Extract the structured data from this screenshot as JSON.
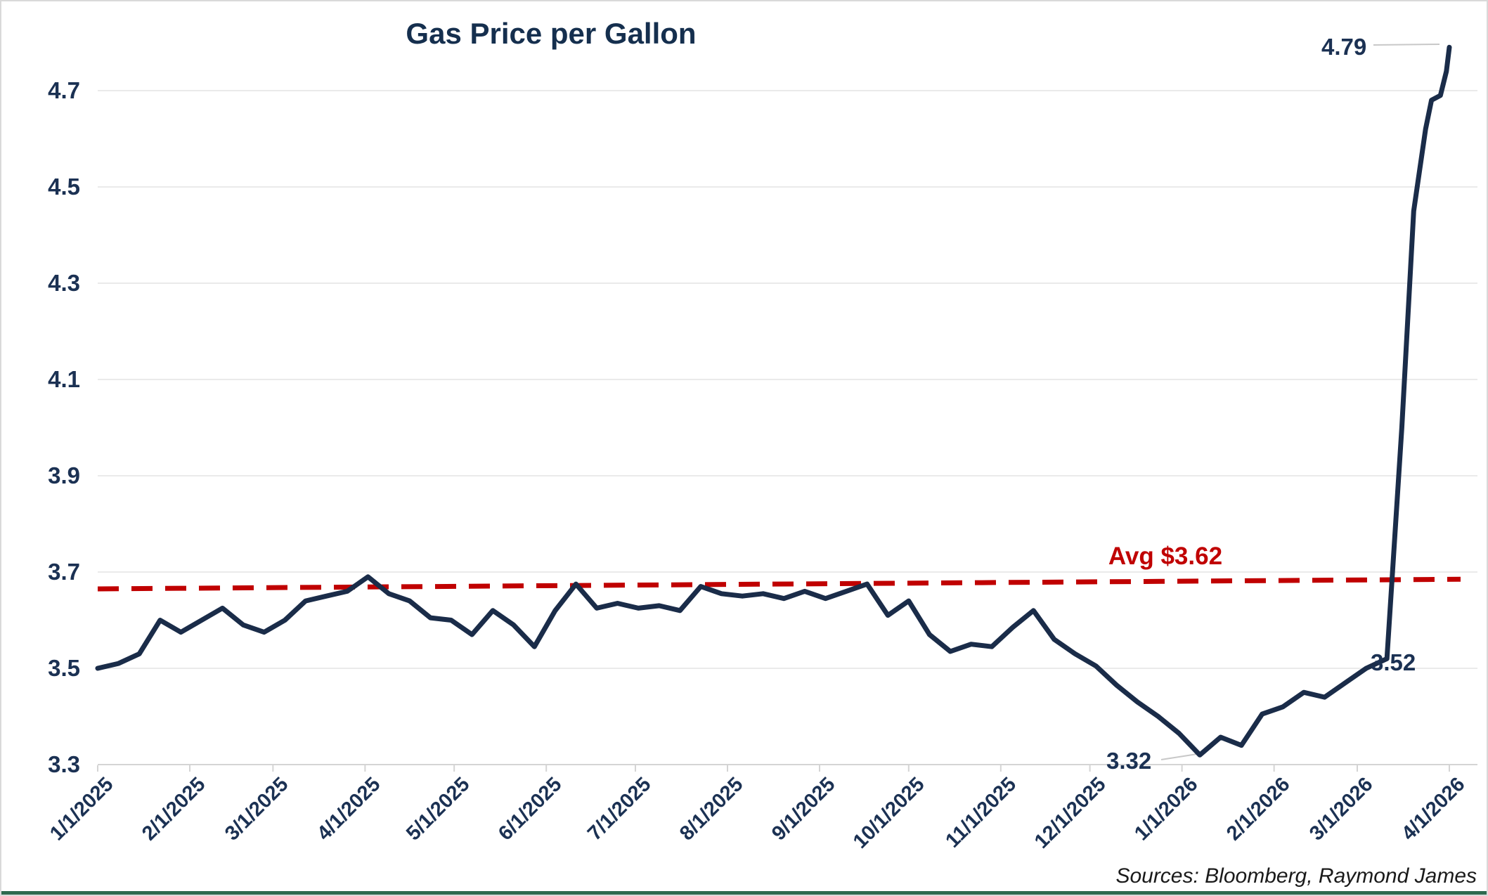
{
  "title": "Gas Price per Gallon",
  "source_note": "Sources: Bloomberg, Raymond James",
  "colors": {
    "line": "#1a2c49",
    "avg_line": "#c00000",
    "navy_text": "#1b3153",
    "grid": "#eaeaea",
    "axis": "#d4d4d4",
    "leader": "#c8c8c8",
    "bottom_border": "#2d6a4f"
  },
  "chart_data": {
    "type": "line",
    "title": "Gas Price per Gallon",
    "xlabel": "",
    "ylabel": "",
    "x_range": [
      "2025-01-01",
      "2026-04-01"
    ],
    "ylim": [
      3.3,
      4.8167
    ],
    "grid": "horizontal",
    "legend": "none",
    "y_ticks": [
      "4.7",
      "4.5",
      "4.3",
      "4.1",
      "3.9",
      "3.7",
      "3.5",
      "3.3"
    ],
    "x_ticks": [
      {
        "label": "1/1/2025",
        "date": "2025-01-01"
      },
      {
        "label": "2/1/2025",
        "date": "2025-02-01"
      },
      {
        "label": "3/1/2025",
        "date": "2025-03-01"
      },
      {
        "label": "4/1/2025",
        "date": "2025-04-01"
      },
      {
        "label": "5/1/2025",
        "date": "2025-05-01"
      },
      {
        "label": "6/1/2025",
        "date": "2025-06-01"
      },
      {
        "label": "7/1/2025",
        "date": "2025-07-01"
      },
      {
        "label": "8/1/2025",
        "date": "2025-08-01"
      },
      {
        "label": "9/1/2025",
        "date": "2025-09-01"
      },
      {
        "label": "10/1/2025",
        "date": "2025-10-01"
      },
      {
        "label": "11/1/2025",
        "date": "2025-11-01"
      },
      {
        "label": "12/1/2025",
        "date": "2025-12-01"
      },
      {
        "label": "1/1/2026",
        "date": "2026-01-01"
      },
      {
        "label": "2/1/2026",
        "date": "2026-02-01"
      },
      {
        "label": "3/1/2026",
        "date": "2026-03-01"
      },
      {
        "label": "4/1/2026",
        "date": "2026-04-01"
      }
    ],
    "series": [
      {
        "name": "Gas Price per Gallon",
        "color": "#1a2c49",
        "points": [
          [
            "2025-01-01",
            3.5
          ],
          [
            "2025-01-08",
            3.51
          ],
          [
            "2025-01-15",
            3.53
          ],
          [
            "2025-01-22",
            3.6
          ],
          [
            "2025-01-29",
            3.575
          ],
          [
            "2025-02-05",
            3.6
          ],
          [
            "2025-02-12",
            3.625
          ],
          [
            "2025-02-19",
            3.59
          ],
          [
            "2025-02-26",
            3.575
          ],
          [
            "2025-03-05",
            3.6
          ],
          [
            "2025-03-12",
            3.64
          ],
          [
            "2025-03-19",
            3.65
          ],
          [
            "2025-03-26",
            3.66
          ],
          [
            "2025-04-02",
            3.69
          ],
          [
            "2025-04-09",
            3.655
          ],
          [
            "2025-04-16",
            3.64
          ],
          [
            "2025-04-23",
            3.605
          ],
          [
            "2025-04-30",
            3.6
          ],
          [
            "2025-05-07",
            3.57
          ],
          [
            "2025-05-14",
            3.62
          ],
          [
            "2025-05-21",
            3.59
          ],
          [
            "2025-05-28",
            3.545
          ],
          [
            "2025-06-04",
            3.62
          ],
          [
            "2025-06-11",
            3.675
          ],
          [
            "2025-06-18",
            3.625
          ],
          [
            "2025-06-25",
            3.635
          ],
          [
            "2025-07-02",
            3.625
          ],
          [
            "2025-07-09",
            3.63
          ],
          [
            "2025-07-16",
            3.62
          ],
          [
            "2025-07-23",
            3.67
          ],
          [
            "2025-07-30",
            3.655
          ],
          [
            "2025-08-06",
            3.65
          ],
          [
            "2025-08-13",
            3.655
          ],
          [
            "2025-08-20",
            3.645
          ],
          [
            "2025-08-27",
            3.66
          ],
          [
            "2025-09-03",
            3.645
          ],
          [
            "2025-09-10",
            3.66
          ],
          [
            "2025-09-17",
            3.675
          ],
          [
            "2025-09-24",
            3.61
          ],
          [
            "2025-10-01",
            3.64
          ],
          [
            "2025-10-08",
            3.57
          ],
          [
            "2025-10-15",
            3.535
          ],
          [
            "2025-10-22",
            3.55
          ],
          [
            "2025-10-29",
            3.545
          ],
          [
            "2025-11-05",
            3.585
          ],
          [
            "2025-11-12",
            3.62
          ],
          [
            "2025-11-19",
            3.56
          ],
          [
            "2025-11-26",
            3.53
          ],
          [
            "2025-12-03",
            3.505
          ],
          [
            "2025-12-10",
            3.465
          ],
          [
            "2025-12-17",
            3.43
          ],
          [
            "2025-12-24",
            3.4
          ],
          [
            "2025-12-31",
            3.365
          ],
          [
            "2026-01-07",
            3.32
          ],
          [
            "2026-01-14",
            3.357
          ],
          [
            "2026-01-21",
            3.34
          ],
          [
            "2026-01-28",
            3.405
          ],
          [
            "2026-02-04",
            3.42
          ],
          [
            "2026-02-11",
            3.45
          ],
          [
            "2026-02-18",
            3.44
          ],
          [
            "2026-02-25",
            3.47
          ],
          [
            "2026-03-04",
            3.5
          ],
          [
            "2026-03-11",
            3.52
          ],
          [
            "2026-03-16",
            4.0
          ],
          [
            "2026-03-20",
            4.45
          ],
          [
            "2026-03-24",
            4.62
          ],
          [
            "2026-03-26",
            4.68
          ],
          [
            "2026-03-29",
            4.69
          ],
          [
            "2026-03-31",
            4.74
          ],
          [
            "2026-04-01",
            4.79
          ]
        ]
      }
    ],
    "avg_line": {
      "label": "Avg $3.62",
      "value": 3.62,
      "style": "dashed",
      "color": "#c00000",
      "start_value": 3.665,
      "end_value": 3.685
    },
    "annotations": [
      {
        "label": "4.79",
        "value": 4.79,
        "date": "2026-04-01"
      },
      {
        "label": "3.52",
        "value": 3.52,
        "date": "2026-03-11"
      },
      {
        "label": "3.32",
        "value": 3.32,
        "date": "2026-01-07"
      }
    ]
  }
}
